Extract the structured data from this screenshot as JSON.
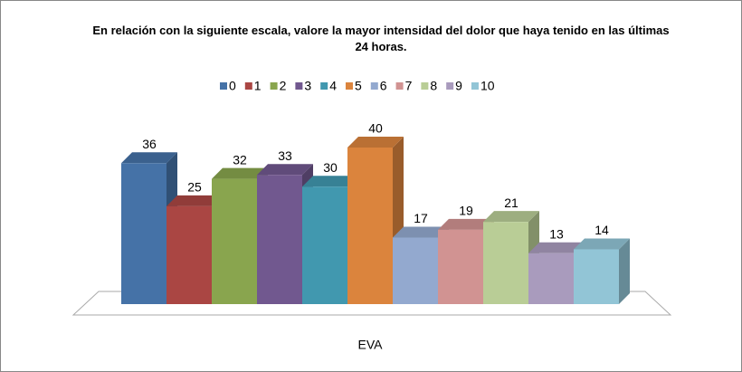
{
  "chart_data": {
    "type": "bar",
    "title": "En relación con la siguiente escala, valore la mayor  intensidad del dolor que haya tenido en las últimas 24 horas.",
    "categories": [
      "EVA"
    ],
    "series": [
      {
        "name": "0",
        "color": "#4572a7",
        "values": [
          36
        ]
      },
      {
        "name": "1",
        "color": "#aa4643",
        "values": [
          25
        ]
      },
      {
        "name": "2",
        "color": "#89a54e",
        "values": [
          32
        ]
      },
      {
        "name": "3",
        "color": "#71588f",
        "values": [
          33
        ]
      },
      {
        "name": "4",
        "color": "#4198af",
        "values": [
          30
        ]
      },
      {
        "name": "5",
        "color": "#db843d",
        "values": [
          40
        ]
      },
      {
        "name": "6",
        "color": "#93a9cf",
        "values": [
          17
        ]
      },
      {
        "name": "7",
        "color": "#d19392",
        "values": [
          19
        ]
      },
      {
        "name": "8",
        "color": "#b9cd96",
        "values": [
          21
        ]
      },
      {
        "name": "9",
        "color": "#a99bbd",
        "values": [
          13
        ]
      },
      {
        "name": "10",
        "color": "#92c5d6",
        "values": [
          14
        ]
      }
    ],
    "legend": "top"
  }
}
